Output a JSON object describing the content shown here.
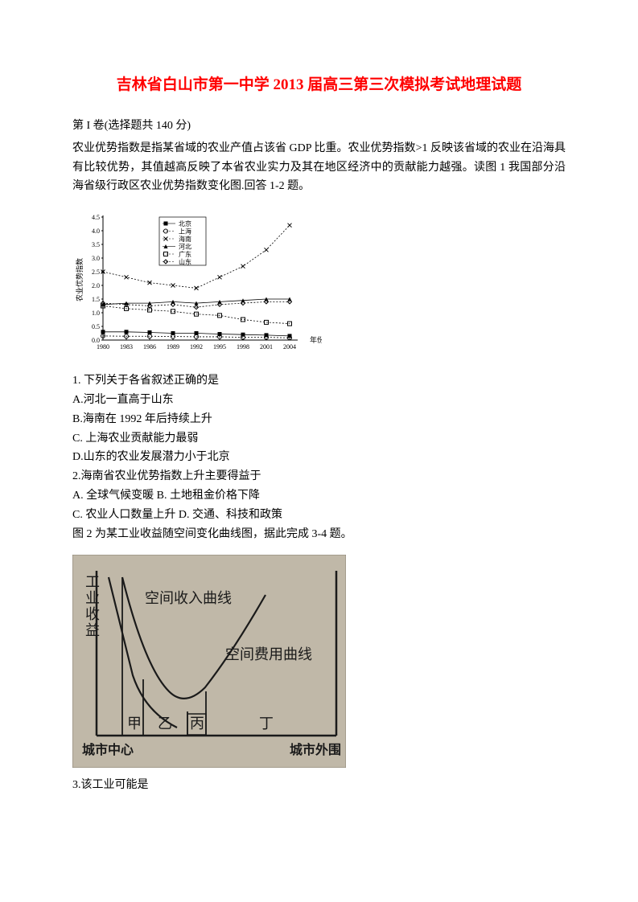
{
  "title": "吉林省白山市第一中学 2013 届高三第三次模拟考试地理试题",
  "section": "第 I 卷(选择题共 140 分)",
  "intro_p1": "农业优势指数是指某省域的农业产值占该省 GDP 比重。农业优势指数>1 反映该省域的农业在沿海具有比较优势，其值越高反映了本省农业实力及其在地区经济中的贡献能力越强。读图 1 我国部分沿海省级行政区农业优势指数变化图.回答 1-2 题。",
  "chart1": {
    "type": "line",
    "ylabel": "农业优势指数",
    "xlabel": "年份",
    "background_color": "#ffffff",
    "axis_color": "#000000",
    "grid_color": "#cccccc",
    "ylim": [
      0,
      4.5
    ],
    "ytick_step": 0.5,
    "x_categories": [
      "1980",
      "1983",
      "1986",
      "1989",
      "1992",
      "1995",
      "1998",
      "2001",
      "2004"
    ],
    "legend_items": [
      {
        "label": "北京",
        "marker": "filled-square",
        "color": "#000000"
      },
      {
        "label": "上海",
        "marker": "open-circle",
        "color": "#000000"
      },
      {
        "label": "海南",
        "marker": "x",
        "color": "#000000"
      },
      {
        "label": "河北",
        "marker": "filled-triangle",
        "color": "#000000"
      },
      {
        "label": "广东",
        "marker": "open-square",
        "color": "#000000"
      },
      {
        "label": "山东",
        "marker": "open-diamond",
        "color": "#000000"
      }
    ],
    "series": {
      "beijing": [
        0.3,
        0.3,
        0.28,
        0.25,
        0.25,
        0.22,
        0.2,
        0.18,
        0.15
      ],
      "shanghai": [
        0.15,
        0.14,
        0.14,
        0.13,
        0.12,
        0.12,
        0.1,
        0.1,
        0.08
      ],
      "hainan": [
        2.5,
        2.3,
        2.1,
        2.0,
        1.9,
        2.3,
        2.7,
        3.3,
        4.2
      ],
      "hebei": [
        1.3,
        1.35,
        1.35,
        1.4,
        1.35,
        1.4,
        1.45,
        1.5,
        1.5
      ],
      "guangdong": [
        1.25,
        1.15,
        1.1,
        1.05,
        0.95,
        0.9,
        0.75,
        0.65,
        0.6
      ],
      "shandong": [
        1.35,
        1.3,
        1.25,
        1.3,
        1.2,
        1.3,
        1.35,
        1.4,
        1.4
      ]
    },
    "label_fontsize": 9,
    "legend_fontsize": 8
  },
  "q1": {
    "stem": "1. 下列关于各省叙述正确的是",
    "a": "A.河北一直高于山东",
    "b": "B.海南在 1992 年后持续上升",
    "c": "C. 上海农业贡献能力最弱",
    "d": "D.山东的农业发展潜力小于北京"
  },
  "q2": {
    "stem": "2.海南省农业优势指数上升主要得益于",
    "ab": "A. 全球气候变暖  B. 土地租金价格下降",
    "cd": "C. 农业人口数量上升  D. 交通、科技和政策"
  },
  "intro_p2": "图 2 为某工业收益随空间变化曲线图，据此完成 3-4 题。",
  "chart2": {
    "type": "line-diagram",
    "background_color": "#c0b8a8",
    "line_color": "#1a1a1a",
    "text_color": "#1a1a1a",
    "ylabel": "工业收益",
    "curve1_label": "空间收入曲线",
    "curve2_label": "空间费用曲线",
    "x_left_label": "城市中心",
    "x_right_label": "城市外围",
    "zones": [
      "甲",
      "乙",
      "丙",
      "丁"
    ],
    "label_fontsize": 16,
    "axis_line_width": 2
  },
  "q3": {
    "stem": "3.该工业可能是"
  }
}
